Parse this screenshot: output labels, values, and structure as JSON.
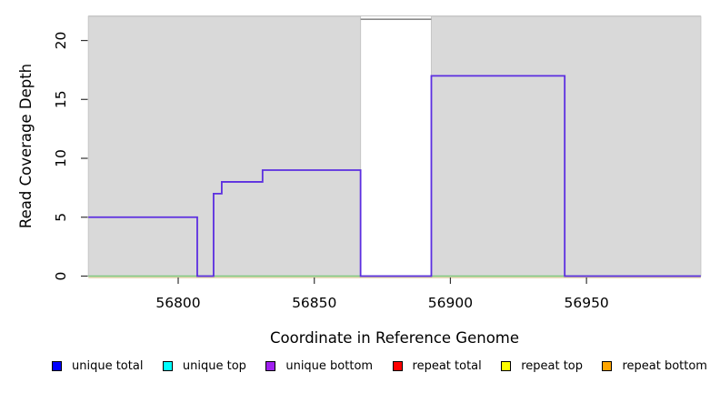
{
  "chart_data": {
    "type": "line",
    "subtype": "step-coverage",
    "title": "",
    "xlabel": "Coordinate in Reference Genome",
    "ylabel": "Read Coverage Depth",
    "xlim": [
      56767,
      56992
    ],
    "ylim": [
      0,
      22.05
    ],
    "x_ticks": [
      56800,
      56850,
      56900,
      56950
    ],
    "y_ticks": [
      0,
      5,
      10,
      15,
      20
    ],
    "grid": false,
    "legend_position": "bottom",
    "plot_top_border": {
      "color": "#c6c6c6"
    },
    "plot_bg_regions": [
      {
        "name": "shaded-region-left",
        "x0": 56767,
        "x1": 56867,
        "fill": "#d9d9d9",
        "stroke": "#c6c6c6"
      },
      {
        "name": "shaded-region-right",
        "x0": 56893,
        "x1": 56992,
        "fill": "#d9d9d9",
        "stroke": "#c6c6c6"
      }
    ],
    "gap_top_line": {
      "x0": 56867,
      "x1": 56893,
      "y": 21.8,
      "color": "#8a8a8a",
      "width": 1.6
    },
    "series": [
      {
        "name": "zero-baseline-underlay",
        "color": "#d9bf86",
        "width": 1,
        "dy": 1.6,
        "points": [
          [
            56767,
            0
          ],
          [
            56992,
            0
          ]
        ]
      },
      {
        "name": "zero-baseline",
        "color": "#7ec87e",
        "width": 1.6,
        "dy": 0,
        "points": [
          [
            56767,
            0
          ],
          [
            56992,
            0
          ]
        ]
      },
      {
        "name": "unique-bottom-coverage",
        "color": "#5b2ee0",
        "width": 1.8,
        "dy": 0,
        "points": [
          [
            56767,
            5
          ],
          [
            56807,
            5
          ],
          [
            56807,
            0
          ],
          [
            56813,
            0
          ],
          [
            56813,
            7
          ],
          [
            56816,
            7
          ],
          [
            56816,
            8
          ],
          [
            56831,
            8
          ],
          [
            56831,
            9
          ],
          [
            56867,
            9
          ],
          [
            56867,
            0
          ],
          [
            56893,
            0
          ],
          [
            56893,
            17
          ],
          [
            56942,
            17
          ],
          [
            56942,
            0
          ],
          [
            56992,
            0
          ]
        ]
      }
    ],
    "legend": [
      {
        "label": "unique total",
        "color": "#0000ff"
      },
      {
        "label": "unique top",
        "color": "#00ffff"
      },
      {
        "label": "unique bottom",
        "color": "#a020f0"
      },
      {
        "label": "repeat total",
        "color": "#ff0000"
      },
      {
        "label": "repeat top",
        "color": "#ffff00"
      },
      {
        "label": "repeat bottom",
        "color": "#ffa500"
      }
    ]
  }
}
